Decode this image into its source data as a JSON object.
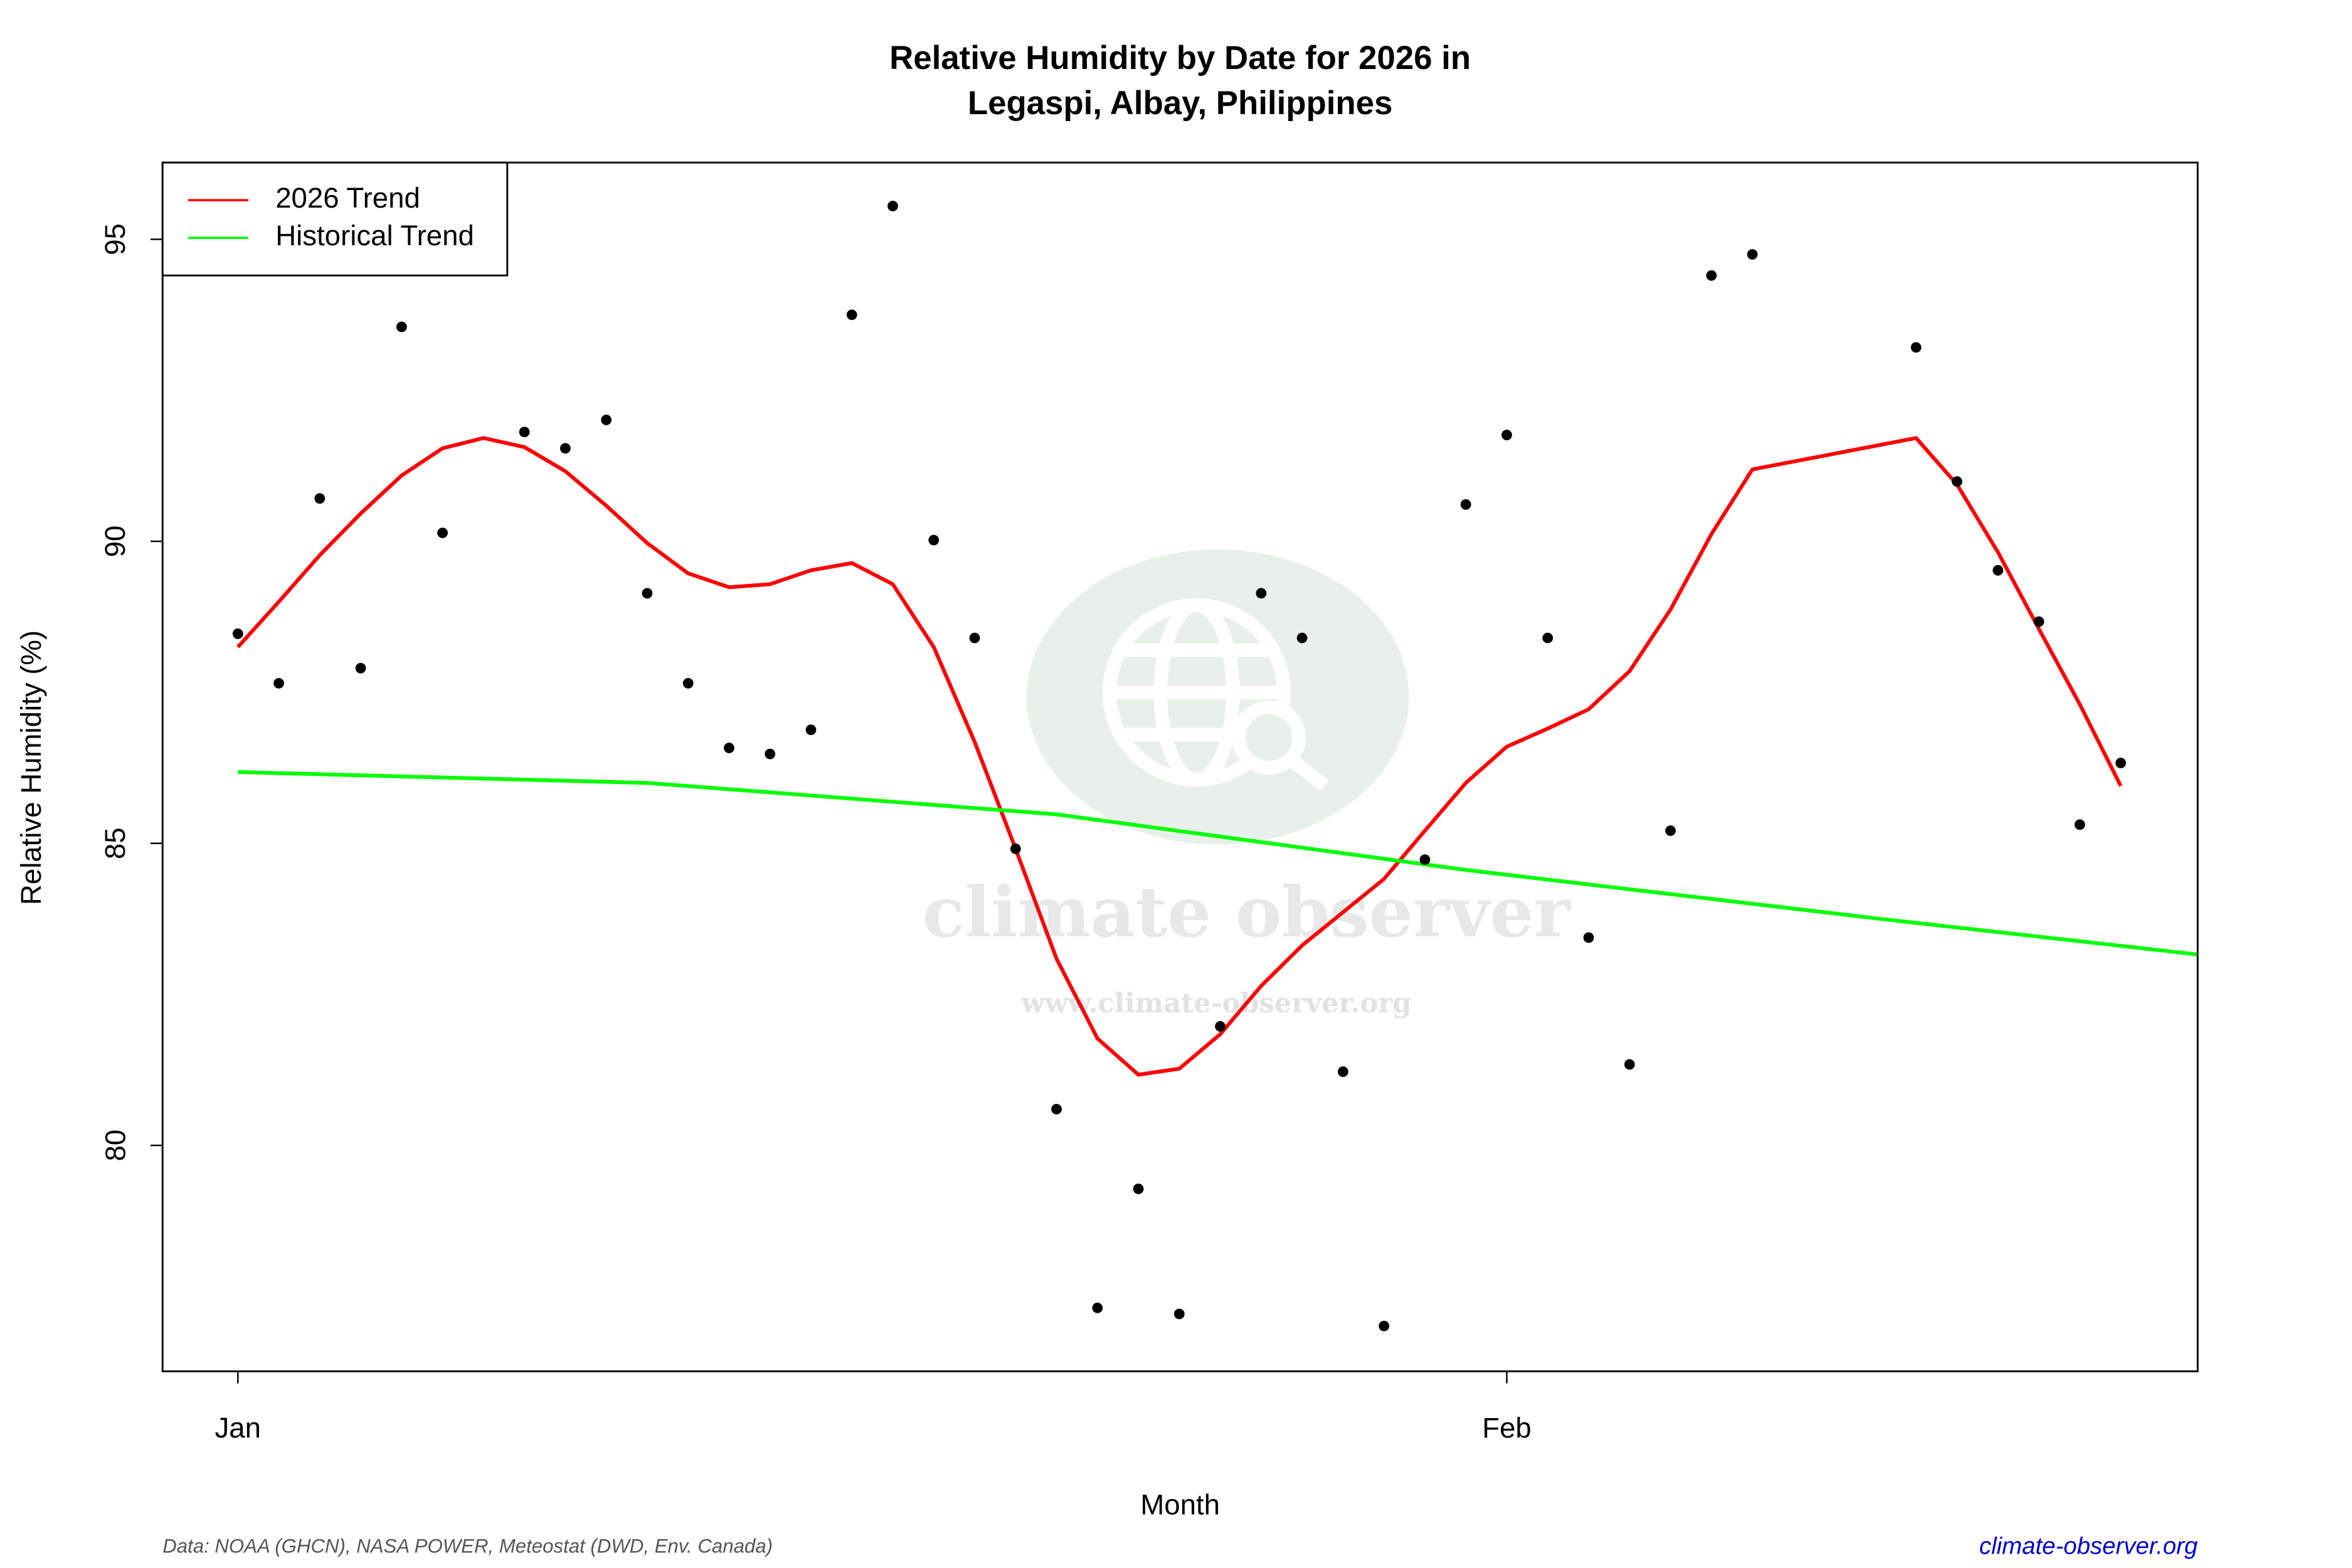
{
  "chart_data": {
    "type": "scatter",
    "title": [
      "Relative Humidity by Date for 2026 in",
      "Legaspi, Albay, Philippines"
    ],
    "xlabel": "Month",
    "ylabel": "Relative Humidity (%)",
    "x": [
      0,
      1,
      2,
      3,
      4,
      5,
      7,
      8,
      9,
      10,
      11,
      12,
      13,
      14,
      15,
      16,
      17,
      18,
      19,
      20,
      21,
      22,
      23,
      24,
      25,
      26,
      27,
      28,
      29,
      30,
      31,
      32,
      33,
      34,
      35,
      36,
      37,
      41,
      42,
      43,
      44,
      45,
      46
    ],
    "values": [
      88.47,
      87.65,
      90.71,
      87.9,
      93.55,
      90.14,
      91.81,
      91.54,
      92.01,
      89.14,
      87.65,
      86.58,
      86.48,
      86.88,
      93.75,
      95.55,
      90.02,
      88.4,
      84.91,
      80.6,
      77.31,
      79.28,
      77.21,
      81.97,
      89.14,
      88.4,
      81.22,
      77.01,
      84.73,
      90.61,
      91.76,
      88.4,
      83.44,
      81.34,
      85.21,
      94.4,
      94.75,
      93.21,
      90.99,
      89.52,
      88.67,
      85.31,
      86.33
    ],
    "color": "#000000",
    "series": [
      {
        "name": "2026 Trend",
        "color": "#ff0000",
        "x": [
          0,
          1,
          2,
          3,
          4,
          5,
          6,
          7,
          8,
          9,
          10,
          11,
          12,
          13,
          14,
          15,
          16,
          17,
          18,
          19,
          20,
          21,
          22,
          23,
          24,
          25,
          26,
          27,
          28,
          29,
          30,
          31,
          32,
          33,
          34,
          35,
          36,
          37,
          41,
          42,
          43,
          44,
          45,
          46
        ],
        "values": [
          88.25,
          89.0,
          89.77,
          90.46,
          91.09,
          91.54,
          91.71,
          91.56,
          91.16,
          90.59,
          89.97,
          89.47,
          89.24,
          89.29,
          89.52,
          89.64,
          89.29,
          88.25,
          86.68,
          84.91,
          83.09,
          81.77,
          81.17,
          81.27,
          81.84,
          82.64,
          83.31,
          83.86,
          84.41,
          85.21,
          86.0,
          86.6,
          86.9,
          87.22,
          87.85,
          88.87,
          90.12,
          91.19,
          91.71,
          90.94,
          89.82,
          88.55,
          87.3,
          85.95
        ]
      },
      {
        "name": "Historical Trend",
        "color": "#00ff00",
        "x": [
          0,
          10,
          20,
          30,
          40,
          47.88
        ],
        "values": [
          86.18,
          86.0,
          85.48,
          84.56,
          83.76,
          83.16
        ]
      }
    ],
    "xlim": [
      -1.84,
      47.88
    ],
    "ylim": [
      76.26,
      96.27
    ],
    "xticks": [
      {
        "value": 0,
        "label": "Jan"
      },
      {
        "value": 31,
        "label": "Feb"
      }
    ],
    "yticks": [
      80,
      85,
      90,
      95
    ],
    "legend": "top-left",
    "grid": false,
    "source": "Data: NOAA (GHCN), NASA POWER, Meteostat (DWD, Env. Canada)",
    "site": "climate-observer.org",
    "watermark": [
      "climate observer",
      "www.climate-observer.org"
    ]
  }
}
